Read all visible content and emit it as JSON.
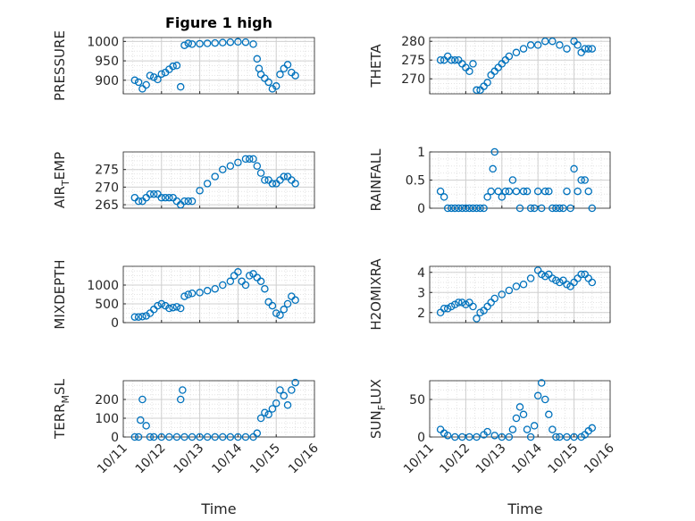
{
  "figure": {
    "title": "Figure 1 high",
    "xlabel": "Time",
    "x_tick_labels": [
      "10/11",
      "10/12",
      "10/13",
      "10/14",
      "10/15",
      "10/16"
    ]
  },
  "colors": {
    "marker": "#0072BD",
    "grid": "#d0d0d0",
    "axis": "#262626"
  },
  "chart_data": [
    {
      "type": "scatter",
      "ylabel": "PRESSURE",
      "ylim": [
        865,
        1010
      ],
      "yticks": [
        900,
        950,
        1000
      ],
      "x": [
        11.3,
        11.4,
        11.5,
        11.6,
        11.7,
        11.8,
        11.9,
        12.0,
        12.1,
        12.2,
        12.3,
        12.4,
        12.5,
        12.6,
        12.7,
        12.8,
        13.0,
        13.2,
        13.4,
        13.6,
        13.8,
        14.0,
        14.2,
        14.4,
        14.5,
        14.55,
        14.6,
        14.7,
        14.8,
        14.9,
        15.0,
        15.1,
        15.2,
        15.3,
        15.4,
        15.5
      ],
      "y": [
        900,
        895,
        878,
        888,
        912,
        908,
        902,
        916,
        920,
        928,
        936,
        938,
        883,
        990,
        995,
        993,
        994,
        995,
        996,
        997,
        998,
        999,
        998,
        993,
        955,
        930,
        915,
        905,
        895,
        878,
        885,
        915,
        930,
        940,
        920,
        912
      ]
    },
    {
      "type": "scatter",
      "ylabel": "THETA",
      "ylim": [
        266,
        281
      ],
      "yticks": [
        270,
        275,
        280
      ],
      "x": [
        11.3,
        11.4,
        11.5,
        11.6,
        11.7,
        11.8,
        11.9,
        12.0,
        12.1,
        12.2,
        12.3,
        12.4,
        12.5,
        12.6,
        12.7,
        12.8,
        12.9,
        13.0,
        13.1,
        13.2,
        13.4,
        13.6,
        13.8,
        14.0,
        14.2,
        14.4,
        14.6,
        14.8,
        15.0,
        15.1,
        15.2,
        15.3,
        15.4,
        15.5
      ],
      "y": [
        275,
        275,
        276,
        275,
        275,
        275,
        274,
        273,
        272,
        274,
        267,
        267,
        268,
        269,
        271,
        272,
        273,
        274,
        275,
        276,
        277,
        278,
        279,
        279,
        280,
        280,
        279,
        278,
        280,
        279,
        277,
        278,
        278,
        278
      ]
    },
    {
      "type": "scatter",
      "ylabel": "AIR_TEMP",
      "ylim": [
        264,
        280
      ],
      "yticks": [
        265,
        270,
        275
      ],
      "x": [
        11.3,
        11.4,
        11.5,
        11.6,
        11.7,
        11.8,
        11.9,
        12.0,
        12.1,
        12.2,
        12.3,
        12.4,
        12.5,
        12.6,
        12.7,
        12.8,
        13.0,
        13.2,
        13.4,
        13.6,
        13.8,
        14.0,
        14.2,
        14.3,
        14.4,
        14.5,
        14.6,
        14.7,
        14.8,
        14.9,
        15.0,
        15.1,
        15.2,
        15.3,
        15.4,
        15.5
      ],
      "y": [
        267,
        266,
        266,
        267,
        268,
        268,
        268,
        267,
        267,
        267,
        267,
        266,
        265,
        266,
        266,
        266,
        269,
        271,
        273,
        275,
        276,
        277,
        278,
        278,
        278,
        276,
        274,
        272,
        272,
        271,
        271,
        272,
        273,
        273,
        272,
        271
      ]
    },
    {
      "type": "scatter",
      "ylabel": "RAINFALL",
      "ylim": [
        0,
        1
      ],
      "yticks": [
        0,
        0.5,
        1
      ],
      "x": [
        11.3,
        11.4,
        11.5,
        11.6,
        11.7,
        11.8,
        11.9,
        12.0,
        12.1,
        12.2,
        12.3,
        12.4,
        12.5,
        12.6,
        12.7,
        12.75,
        12.8,
        12.9,
        13.0,
        13.1,
        13.2,
        13.3,
        13.4,
        13.5,
        13.6,
        13.7,
        13.8,
        13.9,
        14.0,
        14.1,
        14.2,
        14.3,
        14.4,
        14.5,
        14.6,
        14.7,
        14.8,
        14.9,
        15.0,
        15.1,
        15.2,
        15.3,
        15.4,
        15.5
      ],
      "y": [
        0.3,
        0.2,
        0,
        0,
        0,
        0,
        0,
        0,
        0,
        0,
        0,
        0,
        0,
        0.2,
        0.3,
        0.7,
        1.0,
        0.3,
        0.2,
        0.3,
        0.3,
        0.5,
        0.3,
        0,
        0.3,
        0.3,
        0,
        0,
        0.3,
        0,
        0.3,
        0.3,
        0,
        0,
        0,
        0,
        0.3,
        0,
        0.7,
        0.3,
        0.5,
        0.5,
        0.3,
        0
      ]
    },
    {
      "type": "scatter",
      "ylabel": "MIXDEPTH",
      "ylim": [
        0,
        1500
      ],
      "yticks": [
        0,
        500,
        1000
      ],
      "x": [
        11.3,
        11.4,
        11.5,
        11.6,
        11.7,
        11.8,
        11.9,
        12.0,
        12.1,
        12.2,
        12.3,
        12.4,
        12.5,
        12.6,
        12.7,
        12.8,
        13.0,
        13.2,
        13.4,
        13.6,
        13.8,
        13.9,
        14.0,
        14.1,
        14.2,
        14.3,
        14.4,
        14.5,
        14.6,
        14.7,
        14.8,
        14.9,
        15.0,
        15.1,
        15.2,
        15.3,
        15.4,
        15.5
      ],
      "y": [
        150,
        150,
        160,
        180,
        250,
        350,
        450,
        500,
        450,
        380,
        400,
        420,
        380,
        700,
        750,
        780,
        800,
        850,
        900,
        1000,
        1100,
        1250,
        1350,
        1100,
        1000,
        1250,
        1300,
        1200,
        1100,
        900,
        550,
        450,
        250,
        200,
        350,
        500,
        700,
        600
      ]
    },
    {
      "type": "scatter",
      "ylabel": "H2OMIXRA",
      "ylim": [
        1.5,
        4.3
      ],
      "yticks": [
        2,
        3,
        4
      ],
      "x": [
        11.3,
        11.4,
        11.5,
        11.6,
        11.7,
        11.8,
        11.9,
        12.0,
        12.1,
        12.2,
        12.3,
        12.4,
        12.5,
        12.6,
        12.7,
        12.8,
        13.0,
        13.2,
        13.4,
        13.6,
        13.8,
        14.0,
        14.1,
        14.2,
        14.3,
        14.4,
        14.5,
        14.6,
        14.7,
        14.8,
        14.9,
        15.0,
        15.1,
        15.2,
        15.3,
        15.4,
        15.5
      ],
      "y": [
        2.0,
        2.2,
        2.2,
        2.3,
        2.4,
        2.5,
        2.5,
        2.4,
        2.5,
        2.3,
        1.7,
        2.0,
        2.1,
        2.3,
        2.5,
        2.7,
        2.9,
        3.1,
        3.3,
        3.4,
        3.7,
        4.1,
        3.9,
        3.8,
        3.9,
        3.7,
        3.6,
        3.5,
        3.6,
        3.4,
        3.3,
        3.5,
        3.7,
        3.9,
        3.9,
        3.7,
        3.5
      ]
    },
    {
      "type": "scatter",
      "ylabel": "TERR_MSL",
      "ylim": [
        0,
        300
      ],
      "yticks": [
        0,
        100,
        200
      ],
      "x": [
        11.3,
        11.4,
        11.45,
        11.5,
        11.6,
        11.7,
        11.8,
        12.0,
        12.2,
        12.4,
        12.5,
        12.55,
        12.6,
        12.8,
        13.0,
        13.2,
        13.4,
        13.6,
        13.8,
        14.0,
        14.2,
        14.4,
        14.5,
        14.6,
        14.7,
        14.8,
        14.9,
        15.0,
        15.1,
        15.2,
        15.3,
        15.4,
        15.5
      ],
      "y": [
        0,
        0,
        90,
        200,
        60,
        0,
        0,
        0,
        0,
        0,
        200,
        250,
        0,
        0,
        0,
        0,
        0,
        0,
        0,
        0,
        0,
        0,
        20,
        100,
        130,
        120,
        150,
        180,
        250,
        220,
        170,
        250,
        290
      ]
    },
    {
      "type": "scatter",
      "ylabel": "SUN_FLUX",
      "ylim": [
        0,
        75
      ],
      "yticks": [
        0,
        50
      ],
      "x": [
        11.3,
        11.4,
        11.5,
        11.7,
        11.9,
        12.1,
        12.3,
        12.5,
        12.6,
        12.8,
        13.0,
        13.2,
        13.3,
        13.4,
        13.5,
        13.6,
        13.7,
        13.8,
        13.9,
        14.0,
        14.1,
        14.2,
        14.3,
        14.4,
        14.5,
        14.6,
        14.8,
        15.0,
        15.2,
        15.3,
        15.4,
        15.5
      ],
      "y": [
        10,
        5,
        2,
        0,
        0,
        0,
        0,
        3,
        7,
        2,
        0,
        0,
        10,
        25,
        40,
        30,
        10,
        0,
        15,
        55,
        72,
        50,
        30,
        10,
        0,
        0,
        0,
        0,
        0,
        3,
        8,
        12
      ]
    }
  ]
}
